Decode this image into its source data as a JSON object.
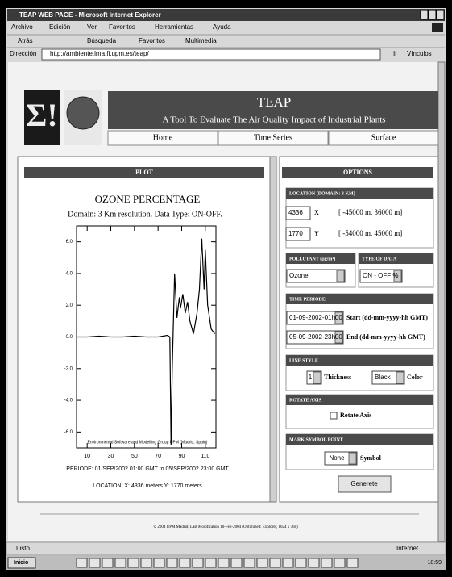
{
  "window": {
    "title": "TEAP WEB PAGE - Microsoft Internet Explorer",
    "menu": [
      "Archivo",
      "Edición",
      "Ver",
      "Favoritos",
      "Herramientas",
      "Ayuda"
    ],
    "toolbar": [
      "Atrás",
      "Búsqueda",
      "Favoritos",
      "Multimedia"
    ],
    "address_label": "Dirección",
    "url": "http://ambiente.lma.fi.upm.es/teap/",
    "go": "Ir",
    "links": "Vínculos",
    "status": "Listo",
    "zone": "Internet",
    "start": "Inicio",
    "clock": "18:59"
  },
  "header": {
    "logo": "Σ!",
    "title": "TEAP",
    "subtitle": "A Tool To Evaluate The Air Quality Impact of Industrial Plants",
    "nav": [
      "Home",
      "Time Series",
      "Surface"
    ]
  },
  "plot_panel": {
    "heading": "PLOT",
    "periode": "PERIODE: 01/SEP/2002 01:00 GMT to 05/SEP/2002 23:00 GMT",
    "location": "LOCATION: X: 4336 meters Y: 1770 meters"
  },
  "chart_data": {
    "type": "line",
    "title": "OZONE PERCENTAGE",
    "subtitle": "Domain: 3 Km resolution.    Data Type: ON-OFF.",
    "annotation": "Environmental Software and Modelling Group UPM (Madrid, Spain)",
    "x": [
      1,
      10,
      20,
      30,
      40,
      50,
      60,
      70,
      78,
      80,
      81,
      82,
      84,
      86,
      88,
      89,
      91,
      93,
      95,
      97,
      100,
      103,
      105,
      107,
      109,
      110,
      112,
      115,
      118
    ],
    "values": [
      0,
      0,
      0.05,
      0,
      0,
      0.05,
      0,
      0,
      0.1,
      0,
      -6.8,
      -2,
      4.0,
      1.2,
      2.5,
      1.8,
      2.7,
      1.5,
      2.2,
      1.0,
      0.2,
      1.5,
      3.0,
      6.2,
      3.0,
      5.5,
      2.0,
      0.5,
      0.2
    ],
    "color": "#000000",
    "xlim": [
      1,
      119
    ],
    "ylim": [
      -7,
      7
    ],
    "xticks": [
      10,
      30,
      50,
      70,
      90,
      110
    ],
    "yticks": [
      {
        "value": 6,
        "label": "6.0"
      },
      {
        "value": 4,
        "label": "4.0"
      },
      {
        "value": 2,
        "label": "2.0"
      },
      {
        "value": 0,
        "label": "0.0"
      },
      {
        "value": -2,
        "label": "-2.0"
      },
      {
        "value": -4,
        "label": "-4.0"
      },
      {
        "value": -6,
        "label": "-6.0"
      }
    ]
  },
  "options": {
    "heading": "OPTIONS",
    "location": {
      "heading": "LOCATION  (DOMAIN: 3 KM)",
      "x": "4336",
      "x_label": "X",
      "x_range": "[ -45000 m, 36000 m]",
      "y": "1770",
      "y_label": "Y",
      "y_range": "[ -54000 m, 45000 m]"
    },
    "pollutant": {
      "heading": "POLLUTANT  (µg/m³)",
      "value": "Ozone"
    },
    "type_of_data": {
      "heading": "TYPE OF DATA",
      "value": "ON - OFF %"
    },
    "time_periode": {
      "heading": "TIME PERIODE",
      "start": "01-09-2002-01h00",
      "start_label": "Start  (dd-mm-yyyy-hh GMT)",
      "end": "05-09-2002-23h00",
      "end_label": "End  (dd-mm-yyyy-hh GMT)"
    },
    "line_style": {
      "heading": "LINE STYLE",
      "thickness": "1",
      "thickness_label": "Thickness",
      "color": "Black",
      "color_label": "Color"
    },
    "rotate_axis": {
      "heading": "ROTATE AXIS",
      "label": "Rotate Axis"
    },
    "mark_symbol": {
      "heading": "MARK SYMBOL POINT",
      "value": "None",
      "label": "Symbol"
    },
    "button": "Generete"
  },
  "footer": "© 2004 UPM Madrid; Last Modification 10-Feb-2004 (Optimized: Explorer, 1024 x 768)"
}
